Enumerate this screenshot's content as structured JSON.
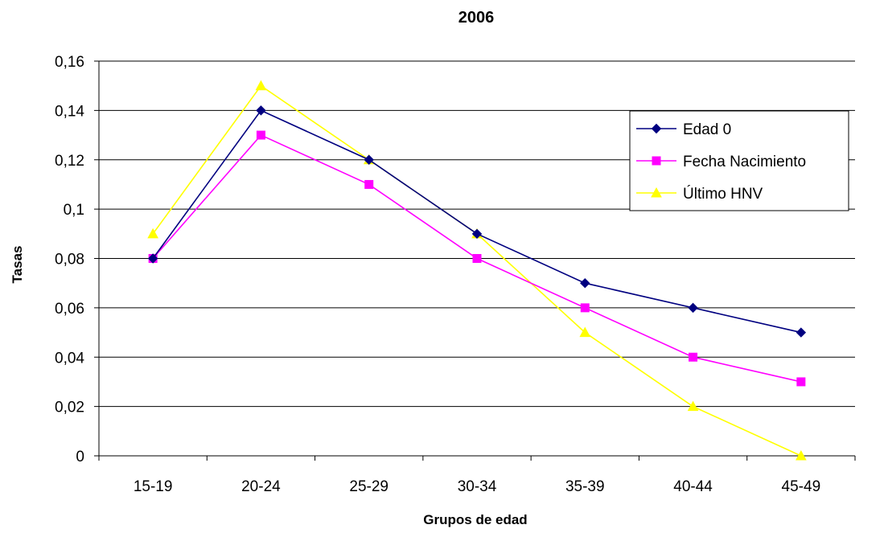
{
  "chart_data": {
    "type": "line",
    "title": "2006",
    "xlabel": "Grupos de edad",
    "ylabel": "Tasas",
    "categories": [
      "15-19",
      "20-24",
      "25-29",
      "30-34",
      "35-39",
      "40-44",
      "45-49"
    ],
    "ylim": [
      0,
      0.16
    ],
    "yticks": [
      0,
      0.02,
      0.04,
      0.06,
      0.08,
      0.1,
      0.12,
      0.14,
      0.16
    ],
    "ytick_labels": [
      "0",
      "0,02",
      "0,04",
      "0,06",
      "0,08",
      "0,1",
      "0,12",
      "0,14",
      "0,16"
    ],
    "grid": true,
    "legend_position": "top-right",
    "series": [
      {
        "name": "Edad 0",
        "color": "#000080",
        "marker": "diamond",
        "values": [
          0.08,
          0.14,
          0.12,
          0.09,
          0.07,
          0.06,
          0.05
        ]
      },
      {
        "name": "Fecha Nacimiento",
        "color": "#ff00ff",
        "marker": "square",
        "values": [
          0.08,
          0.13,
          0.11,
          0.08,
          0.06,
          0.04,
          0.03
        ]
      },
      {
        "name": "Último HNV",
        "color": "#ffff00",
        "marker": "triangle",
        "values": [
          0.09,
          0.15,
          0.12,
          0.09,
          0.05,
          0.02,
          0.0
        ]
      }
    ]
  }
}
